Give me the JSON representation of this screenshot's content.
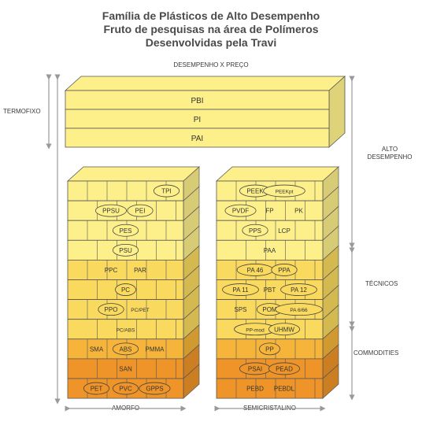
{
  "title": {
    "line1": "Família de Plásticos de Alto Desempenho",
    "line2": "Fruto de pesquisas na área de Polímeros",
    "line3": "Desenvolvidas pela Travi"
  },
  "axis_top": "DESEMPENHO X PREÇO",
  "left_label": "TERMOFIXO",
  "right_labels": {
    "alto_line1": "ALTO",
    "alto_line2": "DESEMPENHO",
    "tecnicos": "TÉCNICOS",
    "commodities": "COMMODITIES"
  },
  "bottom_labels": {
    "left": "AMORFO",
    "right": "SEMICRISTALINO"
  },
  "termofixo_block": [
    "PBI",
    "PI",
    "PAI"
  ],
  "colors": {
    "yellow_light": "#fdf08a",
    "yellow_mid": "#f9d95e",
    "orange_mid": "#f6b53a",
    "orange_dark": "#ef9428",
    "outline": "#555555",
    "arrow": "#999999"
  },
  "amorfo_wall": {
    "rows": [
      {
        "level": "alto",
        "items": [
          {
            "text": "TPI",
            "oval": true
          }
        ]
      },
      {
        "level": "alto",
        "items": [
          {
            "text": "PPSU",
            "oval": true
          },
          {
            "text": "PEI",
            "oval": true
          }
        ]
      },
      {
        "level": "alto",
        "items": [
          {
            "text": "PES",
            "oval": true
          }
        ]
      },
      {
        "level": "alto",
        "items": [
          {
            "text": "PSU",
            "oval": true
          }
        ]
      },
      {
        "level": "tecnico",
        "items": [
          {
            "text": "PPC",
            "oval": false
          },
          {
            "text": "PAR",
            "oval": false
          }
        ]
      },
      {
        "level": "tecnico",
        "items": [
          {
            "text": "PC",
            "oval": true
          }
        ]
      },
      {
        "level": "tecnico",
        "items": [
          {
            "text": "PPO",
            "oval": true
          },
          {
            "text": "PC/PET",
            "oval": false
          }
        ]
      },
      {
        "level": "tecnico",
        "items": [
          {
            "text": "PC/ABS",
            "oval": false
          }
        ]
      },
      {
        "level": "commodity",
        "items": [
          {
            "text": "SMA",
            "oval": false
          },
          {
            "text": "ABS",
            "oval": true
          },
          {
            "text": "PMMA",
            "oval": false
          }
        ]
      },
      {
        "level": "commodity",
        "items": [
          {
            "text": "SAN",
            "oval": false
          }
        ]
      },
      {
        "level": "commodity",
        "items": [
          {
            "text": "PET",
            "oval": true
          },
          {
            "text": "PVC",
            "oval": true
          },
          {
            "text": "GPPS",
            "oval": true
          }
        ]
      }
    ]
  },
  "semicristalino_wall": {
    "rows": [
      {
        "level": "alto",
        "items": [
          {
            "text": "PEEK",
            "oval": true
          },
          {
            "text": "PEEKpt",
            "oval": true
          }
        ]
      },
      {
        "level": "alto",
        "items": [
          {
            "text": "PVDF",
            "oval": true
          },
          {
            "text": "FP",
            "oval": false
          },
          {
            "text": "PK",
            "oval": false
          }
        ]
      },
      {
        "level": "alto",
        "items": [
          {
            "text": "PPS",
            "oval": true
          },
          {
            "text": "LCP",
            "oval": false
          }
        ]
      },
      {
        "level": "alto",
        "items": [
          {
            "text": "PAA",
            "oval": false
          }
        ]
      },
      {
        "level": "tecnico",
        "items": [
          {
            "text": "PA 46",
            "oval": true
          },
          {
            "text": "PPA",
            "oval": true
          }
        ]
      },
      {
        "level": "tecnico",
        "items": [
          {
            "text": "PA 11",
            "oval": true
          },
          {
            "text": "PBT",
            "oval": false
          },
          {
            "text": "PA 12",
            "oval": true
          }
        ]
      },
      {
        "level": "tecnico",
        "items": [
          {
            "text": "SPS",
            "oval": false
          },
          {
            "text": "POM",
            "oval": true
          },
          {
            "text": "PA 6/66",
            "oval": true
          }
        ]
      },
      {
        "level": "tecnico",
        "items": [
          {
            "text": "PP-mod",
            "oval": true
          },
          {
            "text": "UHMW",
            "oval": true
          }
        ]
      },
      {
        "level": "commodity",
        "items": [
          {
            "text": "PP",
            "oval": true
          }
        ]
      },
      {
        "level": "commodity",
        "items": [
          {
            "text": "PSAI",
            "oval": true
          },
          {
            "text": "PEAD",
            "oval": true
          }
        ]
      },
      {
        "level": "commodity",
        "items": [
          {
            "text": "PEBD",
            "oval": false
          },
          {
            "text": "PEBDL",
            "oval": false
          }
        ]
      }
    ]
  }
}
